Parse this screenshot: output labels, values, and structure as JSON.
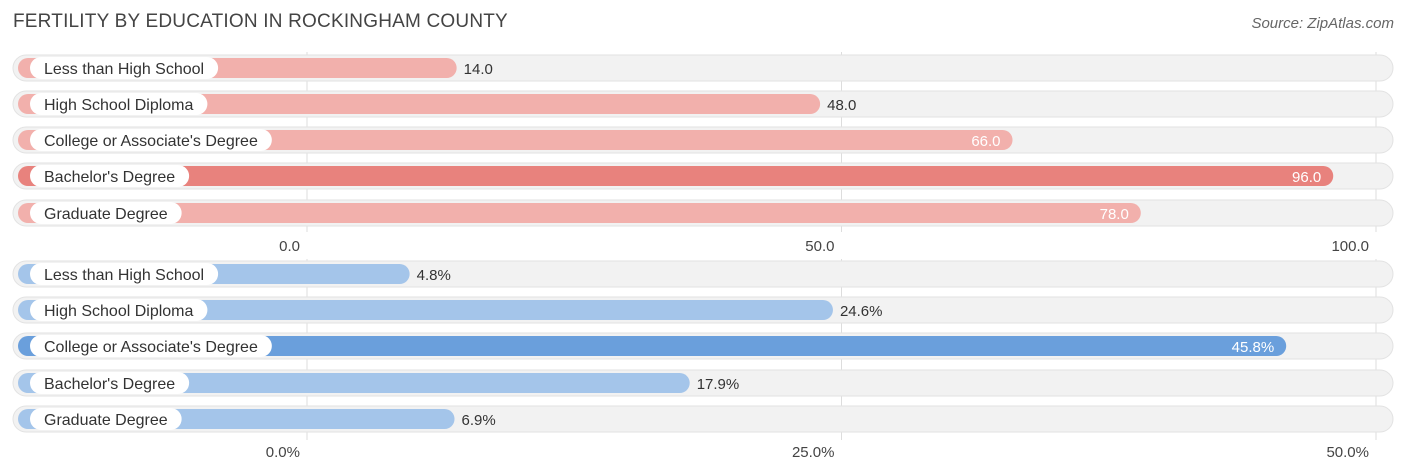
{
  "title": "FERTILITY BY EDUCATION IN ROCKINGHAM COUNTY",
  "source": "Source: ZipAtlas.com",
  "chart_data": [
    {
      "type": "bar",
      "orientation": "horizontal",
      "categories": [
        "Less than High School",
        "High School Diploma",
        "College or Associate's Degree",
        "Bachelor's Degree",
        "Graduate Degree"
      ],
      "values": [
        14.0,
        48.0,
        66.0,
        96.0,
        78.0
      ],
      "value_labels": [
        "14.0",
        "48.0",
        "66.0",
        "96.0",
        "78.0"
      ],
      "xlim": [
        0,
        100
      ],
      "ticks": [
        0,
        50,
        100
      ],
      "tick_labels": [
        "0.0",
        "50.0",
        "100.0"
      ],
      "color": "#e8827d",
      "color_light": "#f2b0ac",
      "grid": true
    },
    {
      "type": "bar",
      "orientation": "horizontal",
      "categories": [
        "Less than High School",
        "High School Diploma",
        "College or Associate's Degree",
        "Bachelor's Degree",
        "Graduate Degree"
      ],
      "values": [
        4.8,
        24.6,
        45.8,
        17.9,
        6.9
      ],
      "value_labels": [
        "4.8%",
        "24.6%",
        "45.8%",
        "17.9%",
        "6.9%"
      ],
      "xlim": [
        0,
        50
      ],
      "ticks": [
        0,
        25,
        50
      ],
      "tick_labels": [
        "0.0%",
        "25.0%",
        "50.0%"
      ],
      "color": "#6a9fdc",
      "color_light": "#a4c5ea",
      "grid": true
    }
  ]
}
